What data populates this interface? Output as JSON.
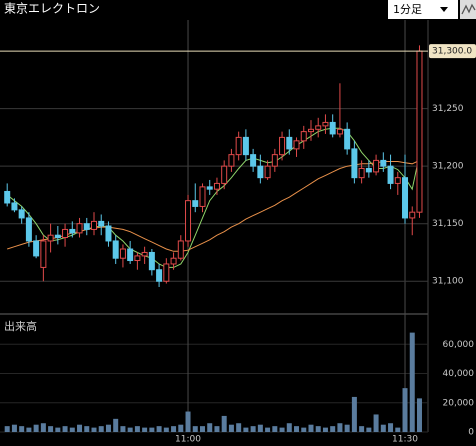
{
  "header": {
    "title": "東京エレクトロン",
    "interval": "1分足"
  },
  "chart_data": [
    {
      "type": "candlestick",
      "open": [
        31178,
        31168,
        31162,
        31155,
        31135,
        31112,
        31135,
        31140,
        31138,
        31145,
        31142,
        31150,
        31145,
        31152,
        31148,
        31135,
        31120,
        31128,
        31118,
        31122,
        31125,
        31110,
        31100,
        31115,
        31120,
        31135,
        31170,
        31165,
        31182,
        31180,
        31185,
        31200,
        31210,
        31225,
        31210,
        31200,
        31190,
        31200,
        31210,
        31225,
        31215,
        31222,
        31230,
        31232,
        31235,
        31238,
        31228,
        31232,
        31215,
        31190,
        31198,
        31195,
        31205,
        31200,
        31185,
        31190,
        31155,
        31160
      ],
      "high": [
        31185,
        31172,
        31165,
        31160,
        31140,
        31140,
        31150,
        31148,
        31150,
        31152,
        31155,
        31155,
        31160,
        31158,
        31152,
        31140,
        31132,
        31135,
        31125,
        31130,
        31128,
        31115,
        31120,
        31125,
        31140,
        31175,
        31185,
        31185,
        31188,
        31190,
        31205,
        31215,
        31230,
        31232,
        31215,
        31210,
        31205,
        31215,
        31230,
        31232,
        31225,
        31235,
        31240,
        31242,
        31245,
        31245,
        31272,
        31238,
        31222,
        31205,
        31205,
        31210,
        31212,
        31210,
        31195,
        31210,
        31165,
        31305
      ],
      "low": [
        31165,
        31160,
        31150,
        31130,
        31120,
        31100,
        31125,
        31132,
        31130,
        31138,
        31138,
        31140,
        31140,
        31140,
        31130,
        31115,
        31112,
        31115,
        31110,
        31115,
        31105,
        31095,
        31098,
        31110,
        31118,
        31130,
        31160,
        31160,
        31175,
        31175,
        31180,
        31195,
        31205,
        31205,
        31195,
        31185,
        31188,
        31195,
        31205,
        31210,
        31208,
        31215,
        31222,
        31225,
        31228,
        31225,
        31225,
        31210,
        31185,
        31185,
        31190,
        31192,
        31195,
        31180,
        31175,
        31150,
        31140,
        31155
      ],
      "close": [
        31168,
        31162,
        31155,
        31135,
        31122,
        31135,
        31140,
        31138,
        31145,
        31142,
        31150,
        31145,
        31152,
        31148,
        31135,
        31120,
        31128,
        31118,
        31122,
        31125,
        31110,
        31100,
        31115,
        31120,
        31135,
        31170,
        31165,
        31182,
        31180,
        31185,
        31200,
        31210,
        31225,
        31210,
        31200,
        31190,
        31200,
        31210,
        31225,
        31215,
        31222,
        31230,
        31232,
        31235,
        31238,
        31228,
        31232,
        31215,
        31190,
        31198,
        31195,
        31205,
        31200,
        31185,
        31190,
        31155,
        31160,
        31300
      ],
      "up_color": "#e04a4a",
      "down_color": "#5cc8ea",
      "lines": [
        {
          "color": "#8fd46a",
          "values": [
            31175,
            31170,
            31165,
            31158,
            31150,
            31140,
            31135,
            31136,
            31138,
            31140,
            31143,
            31145,
            31147,
            31148,
            31147,
            31140,
            31135,
            31128,
            31125,
            31122,
            31120,
            31115,
            31112,
            31112,
            31115,
            31125,
            31140,
            31155,
            31170,
            31178,
            31183,
            31190,
            31198,
            31205,
            31207,
            31205,
            31203,
            31204,
            31208,
            31213,
            31218,
            31222,
            31226,
            31230,
            31232,
            31233,
            31233,
            31230,
            31222,
            31212,
            31205,
            31198,
            31198,
            31200,
            31197,
            31190,
            31180,
            31210
          ]
        },
        {
          "color": "#e8904a",
          "values": [
            31128,
            31130,
            31132,
            31134,
            31135,
            31136,
            31137,
            31138,
            31140,
            31142,
            31143,
            31145,
            31146,
            31147,
            31147,
            31146,
            31145,
            31143,
            31140,
            31137,
            31134,
            31131,
            31128,
            31126,
            31126,
            31127,
            31130,
            31133,
            31136,
            31140,
            31143,
            31147,
            31150,
            31154,
            31157,
            31160,
            31163,
            31166,
            31170,
            31173,
            31177,
            31181,
            31185,
            31189,
            31192,
            31195,
            31198,
            31200,
            31201,
            31202,
            31202,
            31203,
            31204,
            31204,
            31204,
            31203,
            31202,
            31205
          ]
        }
      ],
      "ylim": [
        31075,
        31327
      ],
      "yticks": [
        {
          "value": 31100,
          "label": "31,100"
        },
        {
          "value": 31150,
          "label": "31,150"
        },
        {
          "value": 31200,
          "label": "31,200"
        },
        {
          "value": 31250,
          "label": "31,250"
        }
      ],
      "last_price": {
        "value": 31300,
        "label": "31,300.0"
      },
      "grid": true
    },
    {
      "type": "bar",
      "title": "出来高",
      "categories": [
        null,
        null,
        null,
        null,
        null,
        null,
        null,
        null,
        null,
        null,
        null,
        null,
        null,
        null,
        null,
        null,
        null,
        null,
        null,
        null,
        null,
        null,
        null,
        null,
        null,
        "11:00",
        null,
        null,
        null,
        null,
        null,
        null,
        null,
        null,
        null,
        null,
        null,
        null,
        null,
        null,
        null,
        null,
        null,
        null,
        null,
        null,
        null,
        null,
        null,
        null,
        null,
        null,
        null,
        null,
        null,
        "11:30",
        null,
        null
      ],
      "values": [
        4000,
        5000,
        4000,
        3000,
        5000,
        6000,
        4000,
        3000,
        4000,
        3000,
        5000,
        4000,
        3000,
        4000,
        5000,
        9000,
        4000,
        3000,
        4000,
        3000,
        3000,
        4000,
        3000,
        4000,
        5000,
        14000,
        4000,
        4000,
        6000,
        4000,
        11000,
        5000,
        6000,
        3000,
        4000,
        5000,
        3000,
        4000,
        3000,
        6000,
        4000,
        3000,
        5000,
        4000,
        3000,
        4000,
        6000,
        5000,
        24000,
        4000,
        3000,
        12000,
        5000,
        6000,
        3000,
        30000,
        68000,
        23000
      ],
      "color": "#5a7c9e",
      "ylim": [
        0,
        78000
      ],
      "yticks": [
        0,
        {
          "value": 20000,
          "label": "20,000"
        },
        {
          "value": 40000,
          "label": "40,000"
        },
        {
          "value": 60000,
          "label": "60,000"
        }
      ]
    }
  ]
}
